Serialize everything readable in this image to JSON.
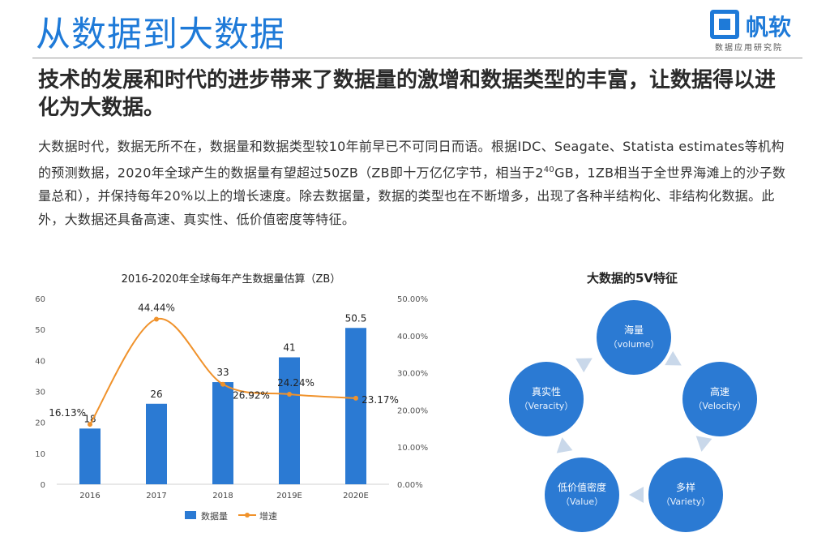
{
  "header": {
    "title": "从数据到大数据",
    "logo_name": "帆软",
    "logo_sub": "数据应用研究院"
  },
  "subtitle": "技术的发展和时代的进步带来了数据量的激增和数据类型的丰富，让数据得以进化为大数据。",
  "body": {
    "part1": "大数据时代，数据无所不在，数据量和数据类型较10年前早已不可同日而语。根据IDC、Seagate、Statista estimates等机构的预测数据，2020年全球产生的数据量有望超过50ZB（ZB即十万亿亿字节，相当于2",
    "sup": "40",
    "part2": "GB，1ZB相当于全世界海滩上的沙子数量总和），并保持每年20%以上的增长速度。除去数据量，数据的类型也在不断增多，出现了各种半结构化、非结构化数据。此外，大数据还具备高速、真实性、低价值密度等特征。"
  },
  "chart_data": {
    "type": "bar",
    "title": "2016-2020年全球每年产生数据量估算（ZB）",
    "categories": [
      "2016",
      "2017",
      "2018",
      "2019E",
      "2020E"
    ],
    "series": [
      {
        "name": "数据量",
        "type": "bar",
        "values": [
          18,
          26,
          33,
          41,
          50.5
        ],
        "labels": [
          "18",
          "26",
          "33",
          "41",
          "50.5"
        ],
        "color": "#2b7ad3"
      },
      {
        "name": "增速",
        "type": "line",
        "axis": "right",
        "values": [
          16.13,
          44.44,
          26.92,
          24.24,
          23.17
        ],
        "labels": [
          "16.13%",
          "44.44%",
          "26.92%",
          "24.24%",
          "23.17%"
        ],
        "color": "#f0922b"
      }
    ],
    "y_left": {
      "ylim": [
        0,
        60
      ],
      "ticks": [
        "0",
        "10",
        "20",
        "30",
        "40",
        "50",
        "60"
      ]
    },
    "y_right": {
      "ylim": [
        0,
        50
      ],
      "ticks": [
        "0.00%",
        "10.00%",
        "20.00%",
        "30.00%",
        "40.00%",
        "50.00%"
      ]
    },
    "legend": "bottom"
  },
  "five_v": {
    "title": "大数据的5V特征",
    "items": [
      {
        "zh": "海量",
        "en": "（volume）"
      },
      {
        "zh": "高速",
        "en": "（Velocity）"
      },
      {
        "zh": "多样",
        "en": "（Variety）"
      },
      {
        "zh": "低价值密度",
        "en": "（Value）"
      },
      {
        "zh": "真实性",
        "en": "（Veracity）"
      }
    ],
    "colors": {
      "circle": "#2b7ad3",
      "arrow": "#c9d8ea"
    }
  },
  "colors": {
    "accent": "#1e7ad8"
  }
}
